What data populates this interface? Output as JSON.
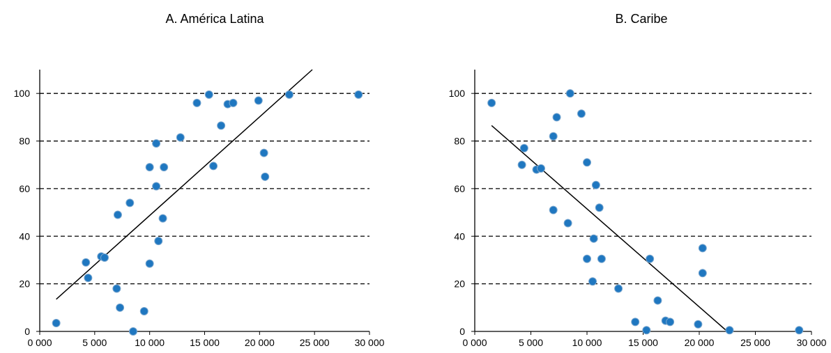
{
  "chart_data": [
    {
      "type": "scatter",
      "title": "A.  América Latina",
      "xlabel": "",
      "ylabel": "",
      "xlim": [
        0,
        30000
      ],
      "ylim": [
        0,
        110
      ],
      "xticks": [
        0,
        5000,
        10000,
        15000,
        20000,
        25000,
        30000
      ],
      "xtick_labels": [
        "0 000",
        "5 000",
        "10 000",
        "15 000",
        "20 000",
        "25 000",
        "30 000"
      ],
      "yticks": [
        0,
        20,
        40,
        60,
        80,
        100
      ],
      "ytick_labels": [
        "0",
        "20",
        "40",
        "60",
        "80",
        "100"
      ],
      "grid": "horizontal dashed",
      "point_color": "#1f77c0",
      "line_color": "#000000",
      "series": [
        {
          "points": [
            [
              1500,
              3.5
            ],
            [
              4200,
              29
            ],
            [
              4400,
              22.5
            ],
            [
              5600,
              31.5
            ],
            [
              5900,
              31
            ],
            [
              7000,
              18
            ],
            [
              7100,
              49
            ],
            [
              7300,
              10
            ],
            [
              8200,
              54
            ],
            [
              8500,
              0
            ],
            [
              9500,
              8.5
            ],
            [
              10000,
              28.5
            ],
            [
              10000,
              69
            ],
            [
              10600,
              79
            ],
            [
              10600,
              61
            ],
            [
              10800,
              38
            ],
            [
              11200,
              47.5
            ],
            [
              11300,
              69
            ],
            [
              12800,
              81.5
            ],
            [
              14300,
              96
            ],
            [
              15400,
              99.5
            ],
            [
              15800,
              69.5
            ],
            [
              16500,
              86.5
            ],
            [
              17100,
              95.5
            ],
            [
              17600,
              96
            ],
            [
              19900,
              97
            ],
            [
              20400,
              75
            ],
            [
              20500,
              65
            ],
            [
              22700,
              99.5
            ],
            [
              29000,
              99.5
            ]
          ],
          "trend": [
            [
              1500,
              13.5
            ],
            [
              24800,
              110
            ]
          ]
        }
      ]
    },
    {
      "type": "scatter",
      "title": "B.  Caribe",
      "xlabel": "",
      "ylabel": "",
      "xlim": [
        0,
        30000
      ],
      "ylim": [
        0,
        110
      ],
      "xticks": [
        0,
        5000,
        10000,
        15000,
        20000,
        25000,
        30000
      ],
      "xtick_labels": [
        "0 000",
        "5 000",
        "10 000",
        "15 000",
        "20 000",
        "25 000",
        "30 000"
      ],
      "yticks": [
        0,
        20,
        40,
        60,
        80,
        100
      ],
      "ytick_labels": [
        "0",
        "20",
        "40",
        "60",
        "80",
        "100"
      ],
      "grid": "horizontal dashed",
      "point_color": "#1f77c0",
      "line_color": "#000000",
      "series": [
        {
          "points": [
            [
              1500,
              96
            ],
            [
              4200,
              70
            ],
            [
              4400,
              77
            ],
            [
              5500,
              68
            ],
            [
              5900,
              68.5
            ],
            [
              7000,
              82
            ],
            [
              7000,
              51
            ],
            [
              7300,
              90
            ],
            [
              8300,
              45.5
            ],
            [
              8500,
              100
            ],
            [
              9500,
              91.5
            ],
            [
              10000,
              71
            ],
            [
              10000,
              30.5
            ],
            [
              10500,
              21
            ],
            [
              10600,
              39
            ],
            [
              10800,
              61.5
            ],
            [
              11100,
              52
            ],
            [
              11300,
              30.5
            ],
            [
              12800,
              18
            ],
            [
              14300,
              4
            ],
            [
              15300,
              0.5
            ],
            [
              15600,
              30.5
            ],
            [
              16300,
              13
            ],
            [
              17000,
              4.5
            ],
            [
              17400,
              4
            ],
            [
              19900,
              3
            ],
            [
              20300,
              35
            ],
            [
              20300,
              24.5
            ],
            [
              22700,
              0.5
            ],
            [
              28900,
              0.5
            ]
          ],
          "trend": [
            [
              1500,
              86.5
            ],
            [
              22500,
              0
            ]
          ]
        }
      ]
    }
  ]
}
